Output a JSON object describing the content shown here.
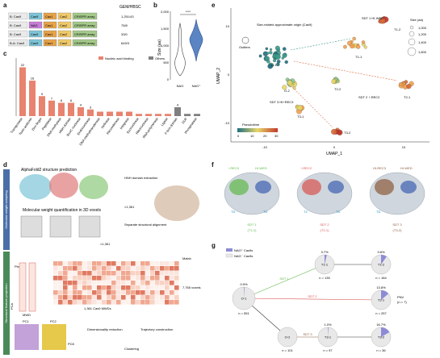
{
  "panels": {
    "a": "a",
    "b": "b",
    "c": "c",
    "d": "d",
    "e": "e",
    "f": "f",
    "g": "g"
  },
  "panel_a": {
    "header": "GEM/HBSC",
    "rows": [
      {
        "lead": "B: Cas9",
        "genes": [
          "Cas9",
          "Cas1",
          "Cas2",
          "CRISPR array"
        ],
        "value": "1,251/43"
      },
      {
        "lead": "B: Cas9",
        "genes": [
          "NAG",
          "Cas1",
          "Cas2",
          "CRISPR array"
        ],
        "value": "75/8"
      },
      {
        "lead": "B: Cas9",
        "genes": [
          "Cas9",
          "Cas1",
          "Cas2",
          "CRISPR array"
        ],
        "value": "33/0"
      },
      {
        "lead": "B-A: Cas9",
        "genes": [
          "Cas9",
          "Cas1",
          "Cas2",
          "CRISPR array"
        ],
        "value": "649/3"
      }
    ]
  },
  "panel_b": {
    "ylabel": "Size (aa)",
    "yticks": [
      "0",
      "500",
      "1,000",
      "1,500",
      "2,000"
    ],
    "categories": [
      "NAG",
      "NAG⁺"
    ],
    "significance": "****"
  },
  "chart_data": {
    "type": "bar",
    "categories": [
      "Transposase",
      "Toxin-antitoxin",
      "Zinc-finger",
      "Peptidase",
      "DNA methylase",
      "HNH domain",
      "RuvC nuclease",
      "Endonuclease",
      "DNA methyltransferase",
      "Helicase",
      "Recombinase",
      "Integrase",
      "Exonuclease",
      "Ribonuclease",
      "RNA polymerase",
      "Ligase",
      "F-box domain",
      "DUF",
      "Phosphatase"
    ],
    "values": [
      22,
      16,
      9,
      7,
      6,
      6,
      4,
      3,
      2,
      2,
      2,
      2,
      1,
      1,
      1,
      1,
      4,
      1,
      1
    ],
    "value_labels": [
      "22",
      "16",
      "9",
      "7",
      "6",
      "6",
      "4",
      "3",
      "",
      "",
      "",
      "",
      "",
      "",
      "",
      "",
      "4",
      "",
      ""
    ],
    "legend": [
      "Nucleic acid binding",
      "Others"
    ],
    "colors": {
      "nucleic": "#e8836f",
      "others": "#7f7f7f"
    },
    "others_index": [
      16,
      17,
      18
    ]
  },
  "panel_d": {
    "title1": "AlphaFold2 structure prediction",
    "hnh": "HNH domain extraction",
    "count1": "×1,361",
    "mw": "Molecular weight quantification in 3D voxels",
    "separate": "Separate structural alignment",
    "count2": "×1,361",
    "pixel": "Pixel",
    "matrix": "Matrix",
    "voxels": "7,765 voxels",
    "mwds": "1,361 Cas9 MWDs",
    "mwd": "MWD",
    "pca": "PCA",
    "pc1": "PC1",
    "pc2": "PC2",
    "pc8": "PC8",
    "dim": "Dimensionality reduction",
    "traj": "Trajectory construction",
    "clust": "Clustering",
    "side1": "Molecular weight sampling",
    "side2": "Structural feature projection"
  },
  "panel_e": {
    "xlabel": "UMAP_1",
    "ylabel": "UMAP_2",
    "xticks": [
      "-10",
      "0",
      "10"
    ],
    "yticks": [
      "-10",
      "0",
      "10"
    ],
    "size_title": "Size (aa)",
    "sizes": [
      "1,000",
      "1,200",
      "1,400",
      "1,600"
    ],
    "outliers": "Outliers",
    "sizeref": "Size-related approximate origin (Cas9)",
    "pseudotime": "Pseudotime",
    "pt_ticks": [
      "0",
      "10",
      "20",
      "30"
    ],
    "clusters": [
      "O-1",
      "O-2",
      "T1-1",
      "T1-2",
      "T2-1",
      "T2-2",
      "T3-1",
      "T3-2"
    ],
    "sdt1": "SDT 1 HI-WED",
    "sdt2": "SDT 2 ↑-REC2",
    "sdt3": "SDT 3 HI+REC3"
  },
  "panel_f": {
    "structures": [
      {
        "top": [
          "↑-REC3",
          "HI-WED"
        ],
        "bottom": "SDT 1",
        "cluster": "(T1-2)",
        "labels": [
          "TD",
          "TD"
        ]
      },
      {
        "top": [
          "↑-REC2"
        ],
        "bottom": "SDT 2",
        "cluster": "(T2-1)",
        "labels": [
          "T2",
          "TD"
        ]
      },
      {
        "top": [
          "HI-REC3",
          "HI-WED"
        ],
        "bottom": "SDT 3",
        "cluster": "(T3-2)",
        "labels": [
          "TD"
        ]
      }
    ]
  },
  "panel_g": {
    "legend": [
      "NAG⁺ Cas9s",
      "NAG⁻ Cas9s"
    ],
    "nodes": [
      {
        "id": "O-1",
        "pct": "0.9%",
        "n": "n = 551"
      },
      {
        "id": "T1-1",
        "pct": "3.7%",
        "n": "n = 135"
      },
      {
        "id": "T1-2",
        "pct": "9.8%",
        "n": "n = 184"
      },
      {
        "id": "T2-1",
        "pct": "13.8%",
        "n": "n = 257"
      },
      {
        "id": "O-2",
        "pct": "",
        "n": "n = 101"
      },
      {
        "id": "T3-1",
        "pct": "1.0%",
        "n": "n = 97"
      },
      {
        "id": "T3-2",
        "pct": "16.7%",
        "n": "n = 36"
      }
    ],
    "fraction": [
      0.009,
      0.037,
      0.098,
      0.138,
      0,
      0.01,
      0.167
    ],
    "edges": [
      "SDT 1",
      "SDT 2",
      "SDT 3"
    ],
    "pnv": "PNV",
    "pnv_n": "(n = 7)"
  }
}
